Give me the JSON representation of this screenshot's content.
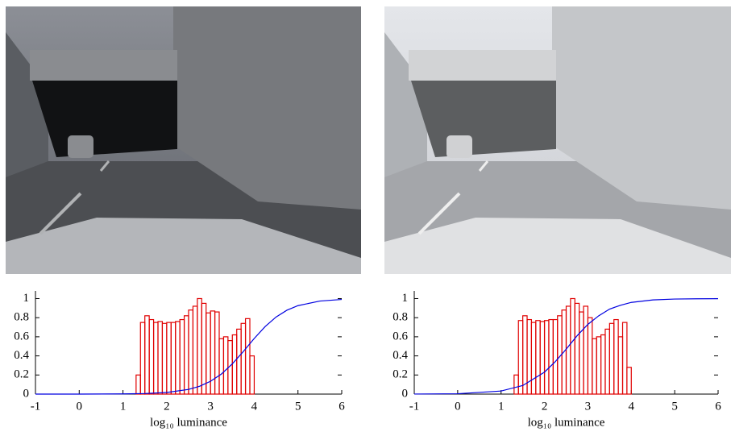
{
  "chart_data": [
    {
      "type": "histogram",
      "xlabel": "log₁₀ luminance",
      "bins": [
        1.3,
        1.4,
        1.5,
        1.6,
        1.7,
        1.8,
        1.9,
        2.0,
        2.1,
        2.2,
        2.3,
        2.4,
        2.5,
        2.6,
        2.7,
        2.8,
        2.9,
        3.0,
        3.1,
        3.2,
        3.3,
        3.4,
        3.5,
        3.6,
        3.7,
        3.8,
        3.9,
        4.0
      ],
      "values": [
        0.2,
        0.75,
        0.82,
        0.78,
        0.75,
        0.76,
        0.74,
        0.75,
        0.75,
        0.76,
        0.78,
        0.82,
        0.88,
        0.92,
        1.0,
        0.95,
        0.85,
        0.87,
        0.86,
        0.58,
        0.6,
        0.56,
        0.62,
        0.68,
        0.74,
        0.79,
        0.4
      ],
      "color": "#e00000",
      "curve": {
        "x": [
          -1,
          0,
          1,
          1.5,
          2,
          2.5,
          2.75,
          3,
          3.25,
          3.5,
          3.75,
          4,
          4.25,
          4.5,
          4.75,
          5,
          5.5,
          6
        ],
        "values": [
          0,
          0.0002,
          0.002,
          0.006,
          0.017,
          0.049,
          0.082,
          0.134,
          0.21,
          0.317,
          0.445,
          0.582,
          0.707,
          0.807,
          0.879,
          0.926,
          0.974,
          0.991
        ],
        "color": "#0000e0"
      },
      "xlim": [
        -1,
        6
      ],
      "ylim": [
        0,
        1.08
      ],
      "xticks": [
        -1,
        0,
        1,
        2,
        3,
        4,
        5,
        6
      ],
      "yticks": [
        0,
        0.2,
        0.4,
        0.6,
        0.8,
        1
      ]
    },
    {
      "type": "histogram",
      "xlabel": "log₁₀ luminance",
      "bins": [
        1.3,
        1.4,
        1.5,
        1.6,
        1.7,
        1.8,
        1.9,
        2.0,
        2.1,
        2.2,
        2.3,
        2.4,
        2.5,
        2.6,
        2.7,
        2.8,
        2.9,
        3.0,
        3.1,
        3.2,
        3.3,
        3.4,
        3.5,
        3.6,
        3.7,
        3.8,
        3.9,
        4.0
      ],
      "values": [
        0.2,
        0.77,
        0.82,
        0.78,
        0.75,
        0.77,
        0.76,
        0.77,
        0.78,
        0.78,
        0.82,
        0.88,
        0.92,
        1.0,
        0.95,
        0.86,
        0.92,
        0.8,
        0.58,
        0.6,
        0.62,
        0.68,
        0.74,
        0.78,
        0.6,
        0.75,
        0.28
      ],
      "color": "#e00000",
      "curve": {
        "x": [
          -1,
          0,
          1,
          1.5,
          2,
          2.25,
          2.5,
          2.75,
          3,
          3.25,
          3.5,
          3.75,
          4,
          4.5,
          5,
          5.5,
          6
        ],
        "values": [
          0.0004,
          0.0037,
          0.032,
          0.09,
          0.23,
          0.34,
          0.47,
          0.61,
          0.73,
          0.82,
          0.89,
          0.93,
          0.96,
          0.986,
          0.995,
          0.998,
          0.999
        ],
        "color": "#0000e0"
      },
      "xlim": [
        -1,
        6
      ],
      "ylim": [
        0,
        1.08
      ],
      "xticks": [
        -1,
        0,
        1,
        2,
        3,
        4,
        5,
        6
      ],
      "yticks": [
        0,
        0.2,
        0.4,
        0.6,
        0.8,
        1
      ]
    }
  ]
}
